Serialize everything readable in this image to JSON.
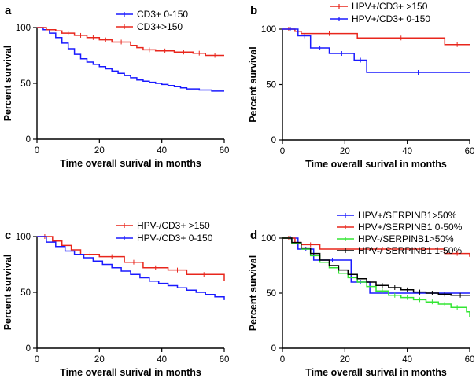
{
  "chart_data": [
    {
      "type": "line",
      "panel": "a",
      "xlabel": "Time overall surival in months",
      "ylabel": "Percent survival",
      "xlim": [
        0,
        60
      ],
      "ylim": [
        0,
        100
      ],
      "xticks": [
        0,
        20,
        40,
        60
      ],
      "yticks": [
        0,
        50,
        100
      ],
      "legend_position": "top-center",
      "series": [
        {
          "name": "CD3+ 0-150",
          "color": "#1a1aff",
          "x": [
            0,
            2,
            4,
            6,
            8,
            10,
            12,
            14,
            16,
            18,
            20,
            22,
            24,
            26,
            28,
            30,
            32,
            34,
            36,
            38,
            40,
            42,
            44,
            46,
            48,
            50,
            52,
            54,
            56,
            58,
            60
          ],
          "y": [
            100,
            98,
            95,
            91,
            86,
            81,
            76,
            72,
            69,
            67,
            65,
            63,
            61,
            59,
            57,
            55,
            53,
            52,
            51,
            50,
            49,
            48,
            47,
            46,
            45,
            45,
            44,
            44,
            43,
            43,
            43
          ]
        },
        {
          "name": "CD3+>150",
          "color": "#e8261c",
          "x": [
            0,
            3,
            6,
            8,
            12,
            16,
            20,
            24,
            30,
            32,
            34,
            38,
            44,
            50,
            54,
            60
          ],
          "y": [
            100,
            98,
            97,
            95,
            93,
            91,
            89,
            87,
            84,
            82,
            80,
            79,
            78,
            77,
            75,
            75
          ]
        }
      ]
    },
    {
      "type": "line",
      "panel": "b",
      "xlabel": "Time overall surival in months",
      "ylabel": "Percent survival",
      "xlim": [
        0,
        60
      ],
      "ylim": [
        0,
        100
      ],
      "xticks": [
        0,
        20,
        40,
        60
      ],
      "yticks": [
        0,
        50,
        100
      ],
      "legend_position": "top-center",
      "series": [
        {
          "name": "HPV+/CD3+ >150",
          "color": "#e8261c",
          "x": [
            0,
            4,
            6,
            24,
            52,
            60
          ],
          "y": [
            100,
            98,
            96,
            92,
            86,
            86
          ]
        },
        {
          "name": "HPV+/CD3+ 0-150",
          "color": "#1a1aff",
          "x": [
            0,
            5,
            9,
            15,
            23,
            27,
            60
          ],
          "y": [
            100,
            94,
            83,
            78,
            72,
            61,
            61
          ]
        }
      ]
    },
    {
      "type": "line",
      "panel": "c",
      "xlabel": "Time overall surival in months",
      "ylabel": "Percent survival",
      "xlim": [
        0,
        60
      ],
      "ylim": [
        0,
        100
      ],
      "xticks": [
        0,
        20,
        40,
        60
      ],
      "yticks": [
        0,
        50,
        100
      ],
      "legend_position": "top-center",
      "series": [
        {
          "name": "HPV-/CD3+ >150",
          "color": "#e8261c",
          "x": [
            0,
            5,
            8,
            11,
            14,
            20,
            28,
            34,
            42,
            48,
            59,
            60
          ],
          "y": [
            100,
            96,
            92,
            88,
            84,
            82,
            77,
            72,
            70,
            66,
            66,
            60
          ]
        },
        {
          "name": "HPV-/CD3+ 0-150",
          "color": "#1a1aff",
          "x": [
            0,
            3,
            6,
            9,
            12,
            15,
            18,
            21,
            24,
            27,
            30,
            33,
            36,
            39,
            42,
            45,
            48,
            51,
            54,
            57,
            60
          ],
          "y": [
            100,
            95,
            91,
            87,
            84,
            81,
            78,
            75,
            72,
            69,
            66,
            63,
            60,
            58,
            56,
            54,
            52,
            50,
            48,
            46,
            43
          ]
        }
      ]
    },
    {
      "type": "line",
      "panel": "d",
      "xlabel": "Time overall surival in months",
      "ylabel": "Percent survival",
      "xlim": [
        0,
        60
      ],
      "ylim": [
        0,
        100
      ],
      "xticks": [
        0,
        20,
        40,
        60
      ],
      "yticks": [
        0,
        50,
        100
      ],
      "legend_position": "top-right",
      "series": [
        {
          "name": "HPV+/SERPINB1>50%",
          "color": "#1a1aff",
          "x": [
            0,
            5,
            10,
            22,
            28,
            60
          ],
          "y": [
            100,
            90,
            80,
            60,
            50,
            50
          ]
        },
        {
          "name": "HPV+/SERPINB1 0-50%",
          "color": "#e8261c",
          "x": [
            0,
            4,
            6,
            12,
            52,
            60
          ],
          "y": [
            100,
            96,
            94,
            90,
            86,
            83
          ]
        },
        {
          "name": "HPV-/SERPINB1>50%",
          "color": "#33e633",
          "x": [
            0,
            3,
            6,
            9,
            12,
            15,
            18,
            21,
            24,
            27,
            30,
            34,
            38,
            42,
            46,
            50,
            54,
            58,
            59,
            60
          ],
          "y": [
            100,
            95,
            90,
            84,
            78,
            73,
            68,
            64,
            60,
            56,
            52,
            48,
            46,
            44,
            42,
            40,
            37,
            37,
            33,
            28
          ]
        },
        {
          "name": "HPV-/ SERPINB1 1-50%",
          "color": "#000000",
          "x": [
            0,
            3,
            6,
            9,
            12,
            15,
            18,
            21,
            24,
            27,
            30,
            34,
            38,
            42,
            46,
            50,
            54,
            60
          ],
          "y": [
            100,
            96,
            91,
            86,
            80,
            75,
            71,
            67,
            63,
            60,
            57,
            55,
            53,
            51,
            50,
            49,
            48,
            48
          ]
        }
      ]
    }
  ]
}
